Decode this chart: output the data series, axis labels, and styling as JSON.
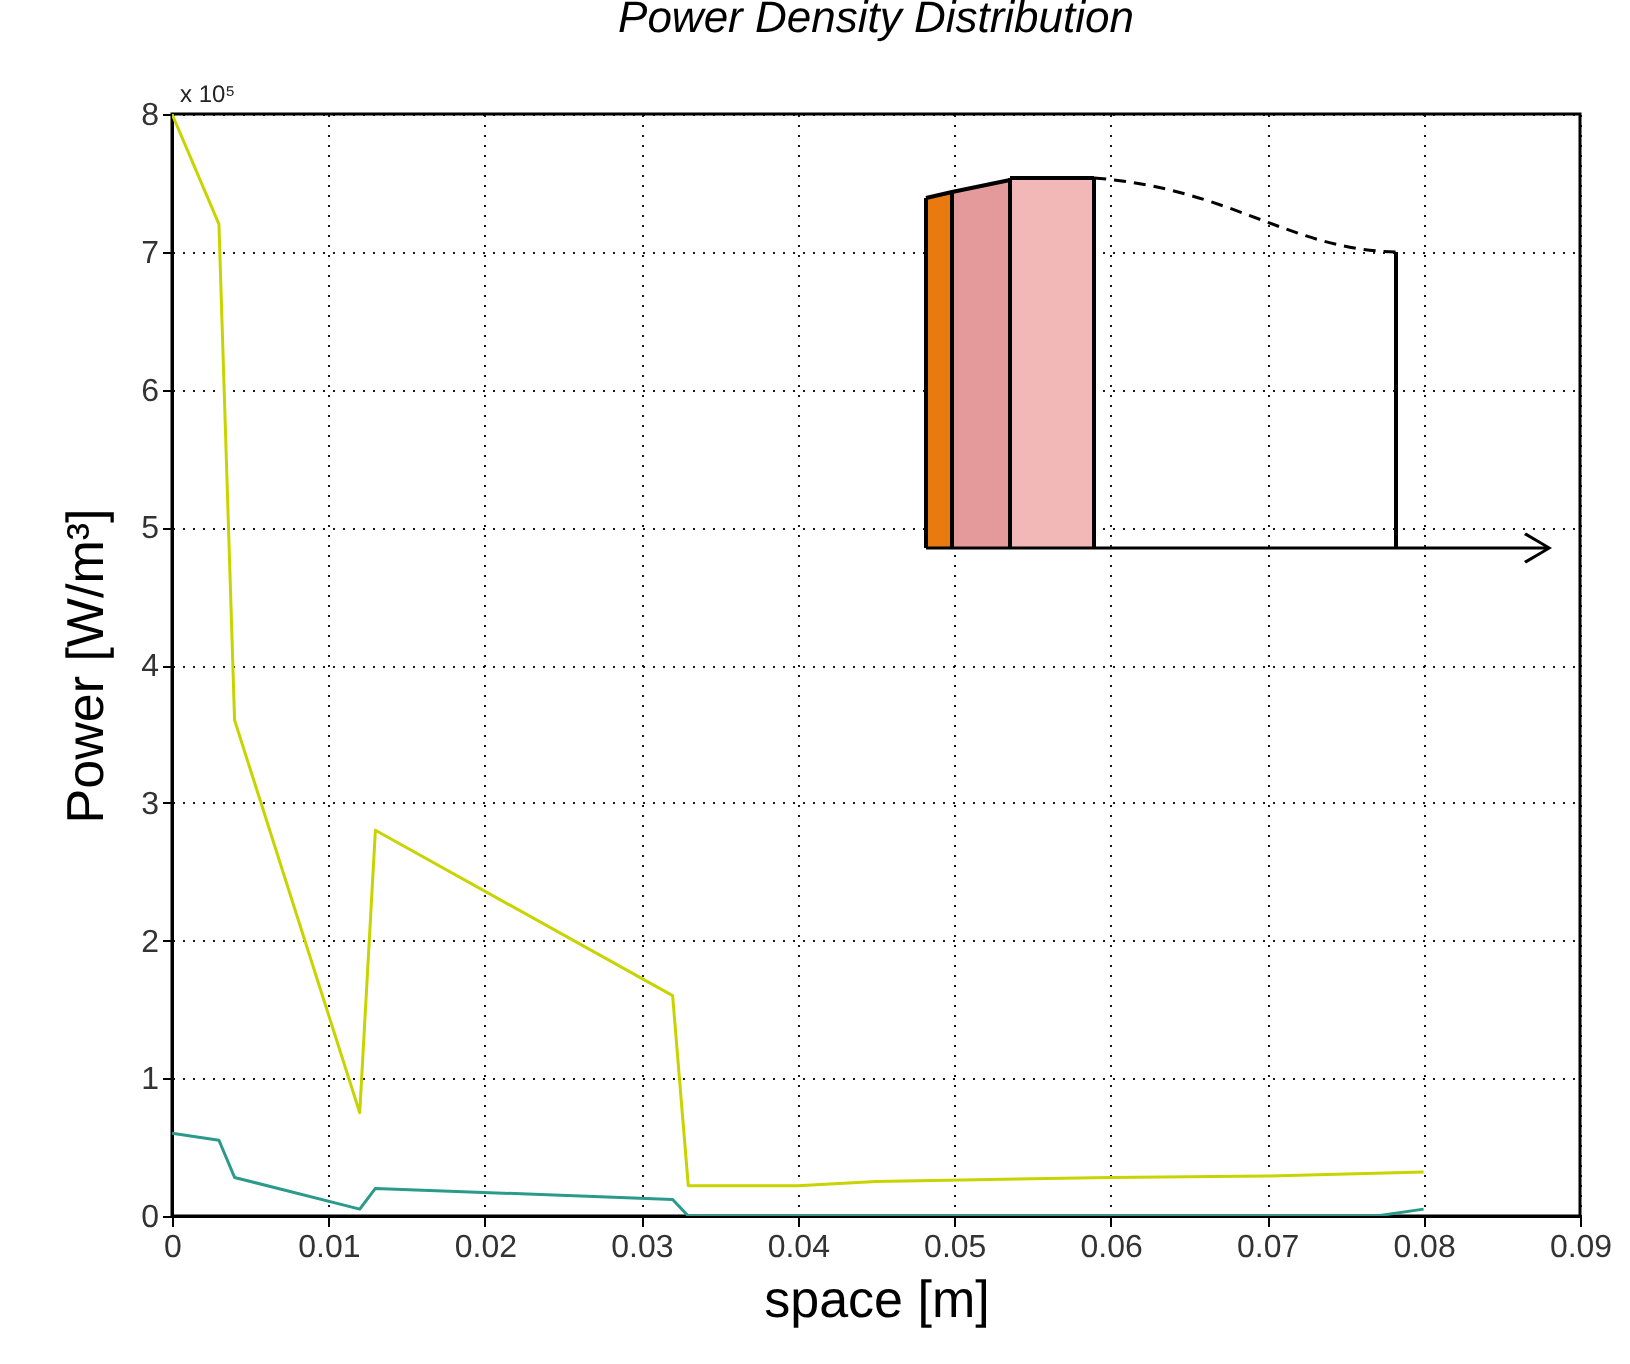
{
  "chart_data": {
    "type": "line",
    "title": "Power Density Distribution",
    "xlabel": "space [m]",
    "ylabel": "Power [W/m³]",
    "annotations": [
      "x 10⁵"
    ],
    "xlim": [
      0,
      0.09
    ],
    "xticks": [
      0,
      0.01,
      0.02,
      0.03,
      0.04,
      0.05,
      0.06,
      0.07,
      0.08,
      0.09
    ],
    "ylim": [
      0,
      8
    ],
    "yticks": [
      0,
      1,
      2,
      3,
      4,
      5,
      6,
      7,
      8
    ],
    "grid": true,
    "line_style": "solid",
    "series": [
      {
        "color": "#c8d400",
        "x": [
          0,
          0.003,
          0.004,
          0.012,
          0.013,
          0.032,
          0.033,
          0.04,
          0.045,
          0.06,
          0.07,
          0.08
        ],
        "values": [
          8,
          7.2,
          3.6,
          0.75,
          2.8,
          1.6,
          0.22,
          0.22,
          0.25,
          0.28,
          0.29,
          0.32
        ]
      },
      {
        "color": "#2a9a8a",
        "x": [
          0,
          0.003,
          0.004,
          0.012,
          0.013,
          0.032,
          0.033,
          0.077,
          0.08
        ],
        "values": [
          0.6,
          0.55,
          0.28,
          0.05,
          0.2,
          0.12,
          0,
          0,
          0.05
        ]
      }
    ]
  }
}
